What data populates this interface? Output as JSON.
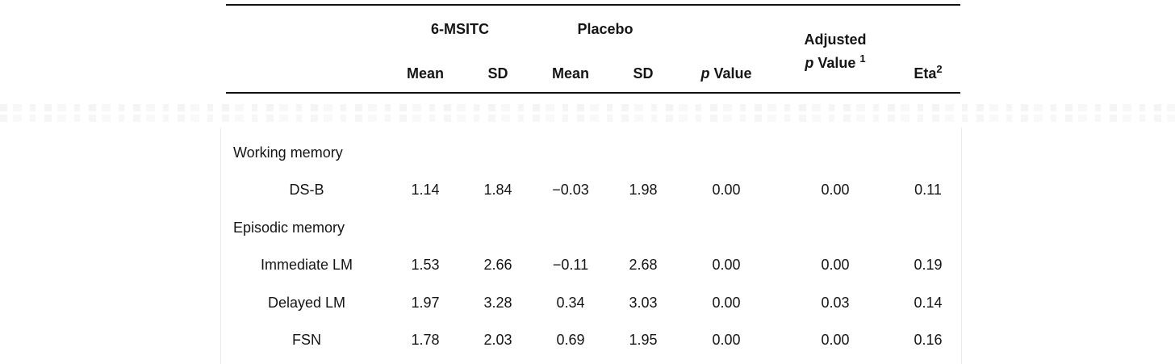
{
  "table": {
    "header": {
      "group1": "6-MSITC",
      "group2": "Placebo",
      "sub": [
        "Mean",
        "SD",
        "Mean",
        "SD"
      ],
      "p_italic": "p",
      "p_word": "Value",
      "adjusted_line1": "Adjusted",
      "adjusted_p_italic": "p",
      "adjusted_word": "Value",
      "adjusted_sup": "1",
      "eta_base": "Eta",
      "eta_sup": "2"
    },
    "groups": [
      {
        "label": "Working memory",
        "rows": [
          {
            "label": "DS-B",
            "values": [
              "1.14",
              "1.84",
              "−0.03",
              "1.98",
              "0.00",
              "0.00",
              "0.11"
            ]
          }
        ]
      },
      {
        "label": "Episodic memory",
        "rows": [
          {
            "label": "Immediate LM",
            "values": [
              "1.53",
              "2.66",
              "−0.11",
              "2.68",
              "0.00",
              "0.00",
              "0.19"
            ]
          },
          {
            "label": "Delayed LM",
            "values": [
              "1.97",
              "3.28",
              "0.34",
              "3.03",
              "0.00",
              "0.03",
              "0.14"
            ]
          },
          {
            "label": "FSN",
            "values": [
              "1.78",
              "2.03",
              "0.69",
              "1.95",
              "0.00",
              "0.00",
              "0.16"
            ]
          }
        ]
      }
    ]
  }
}
